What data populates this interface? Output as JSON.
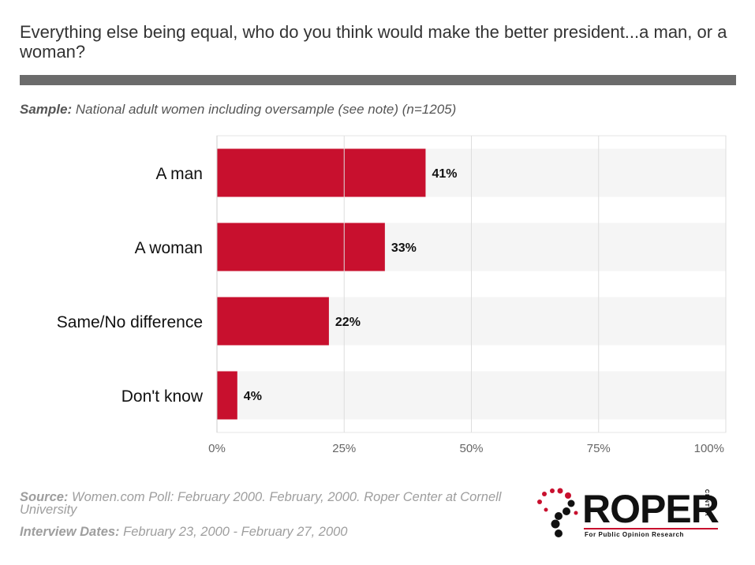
{
  "title": "Everything else being equal, who do you think would make the better president...a man, or a woman?",
  "sample": {
    "label": "Sample:",
    "text": "National adult women including oversample (see note) (n=1205)"
  },
  "chart_data": {
    "type": "bar",
    "orientation": "horizontal",
    "categories": [
      "A man",
      "A woman",
      "Same/No difference",
      "Don't know"
    ],
    "values": [
      41,
      33,
      22,
      4
    ],
    "value_labels": [
      "41%",
      "33%",
      "22%",
      "4%"
    ],
    "xlim": [
      0,
      100
    ],
    "x_ticks": [
      0,
      25,
      50,
      75,
      100
    ],
    "x_tick_labels": [
      "0%",
      "25%",
      "50%",
      "75%",
      "100%"
    ],
    "grid": true,
    "bar_color": "#c8102e",
    "track_color": "#f5f5f5"
  },
  "footer": {
    "source_label": "Source:",
    "source_text": "Women.com Poll: February 2000. February, 2000. Roper Center at Cornell University",
    "dates_label": "Interview Dates:",
    "dates_text": "February 23, 2000 - February 27, 2000"
  },
  "logo": {
    "word": "ROPER",
    "side": "CENTER",
    "tagline": "For Public Opinion Research",
    "accent": "#c8102e"
  }
}
